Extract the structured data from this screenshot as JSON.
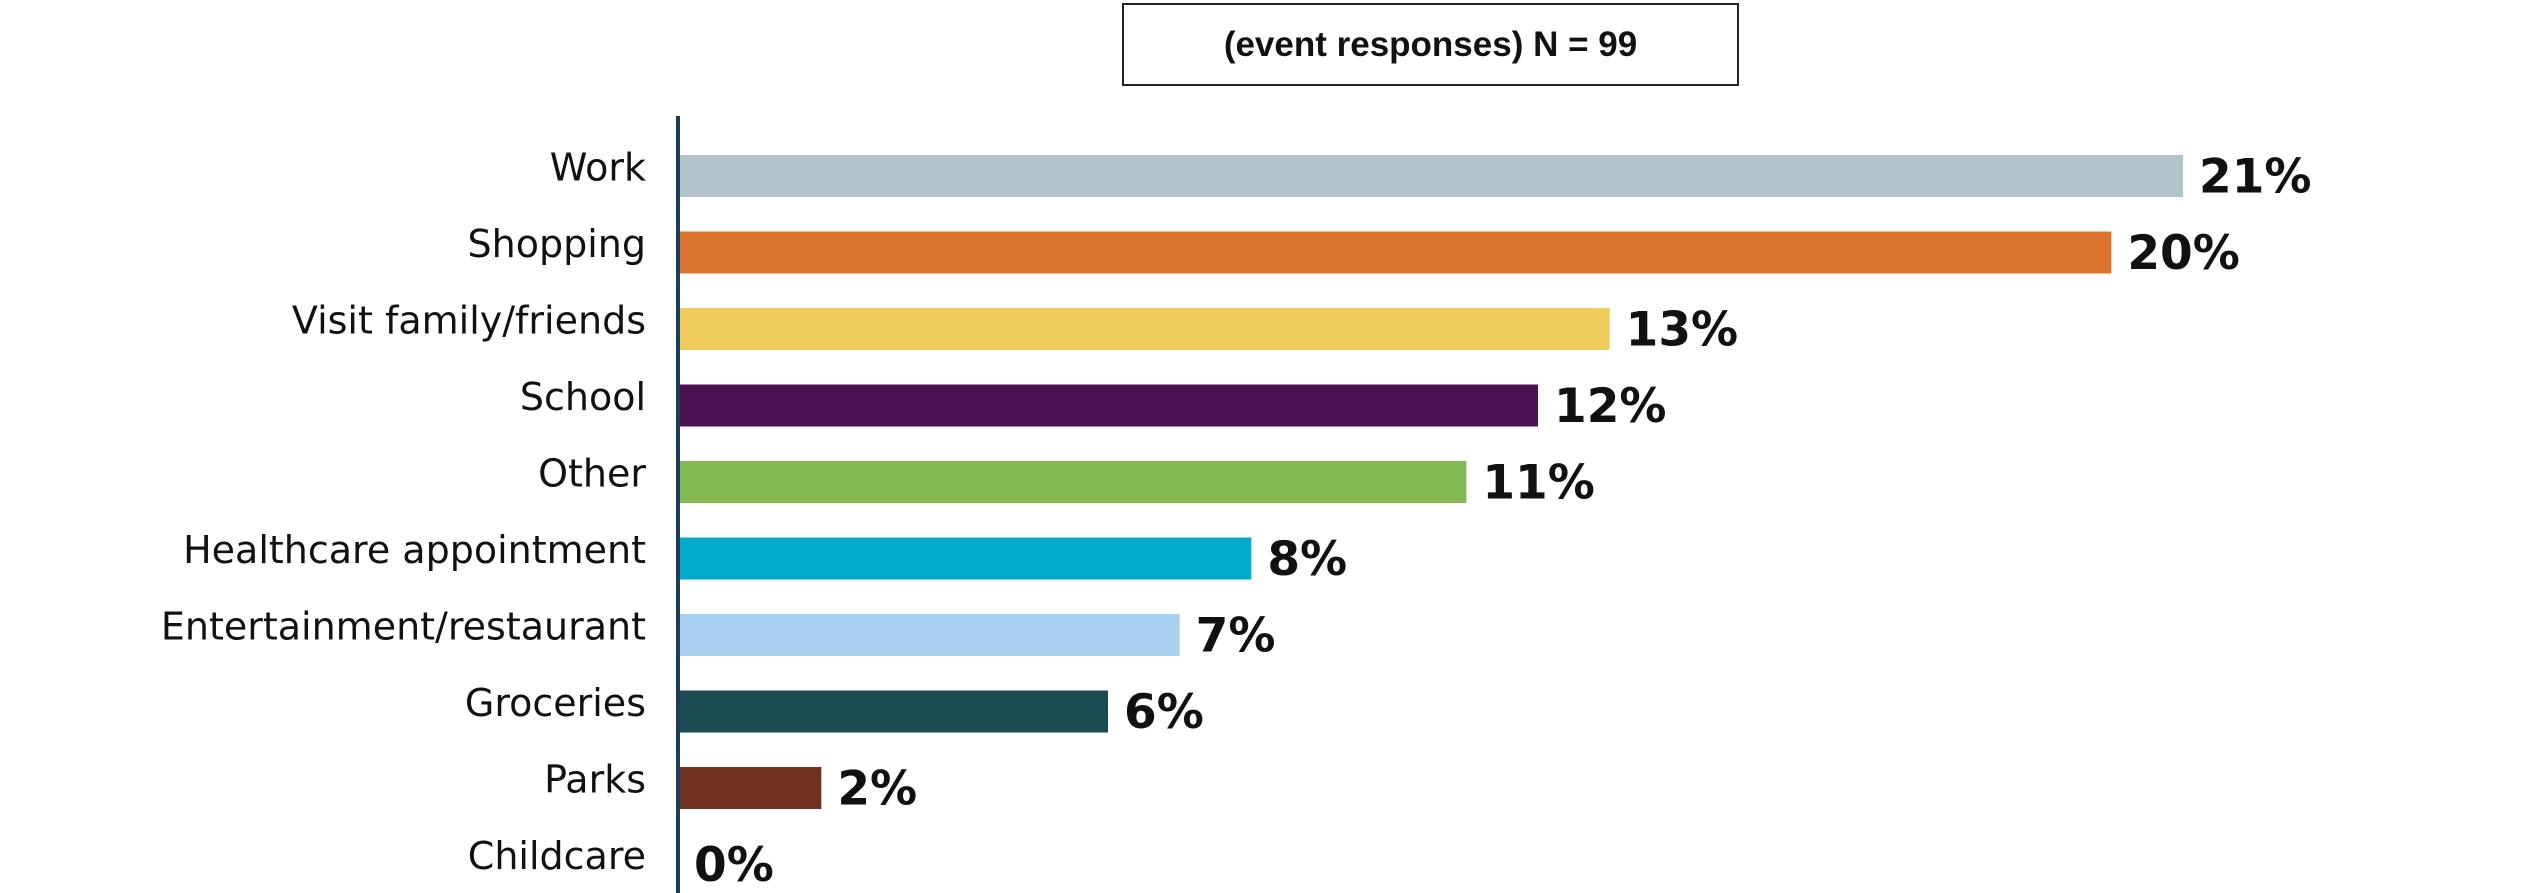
{
  "header": {
    "subtitle": "(event responses) N = 99"
  },
  "chart_data": {
    "type": "bar",
    "orientation": "horizontal",
    "title": "",
    "subtitle": "(event responses) N = 99",
    "xlabel": "",
    "ylabel": "",
    "xlim": [
      0,
      21
    ],
    "grid": false,
    "legend": "none",
    "categories": [
      "Work",
      "Shopping",
      "Visit family/friends",
      "School",
      "Other",
      "Healthcare appointment",
      "Entertainment/restaurant",
      "Groceries",
      "Parks",
      "Childcare"
    ],
    "values": [
      21,
      20,
      13,
      12,
      11,
      8,
      7,
      6,
      2,
      0
    ],
    "value_labels": [
      "21%",
      "20%",
      "13%",
      "12%",
      "11%",
      "8%",
      "7%",
      "6%",
      "2%",
      "0%"
    ],
    "colors": [
      "#b1c4cc",
      "#da742f",
      "#f0cc5c",
      "#4b1150",
      "#82ba51",
      "#00abc9",
      "#a8d0f0",
      "#1a4a52",
      "#71321f",
      "#cccccc"
    ],
    "axis_color": "#1f3b5a"
  }
}
